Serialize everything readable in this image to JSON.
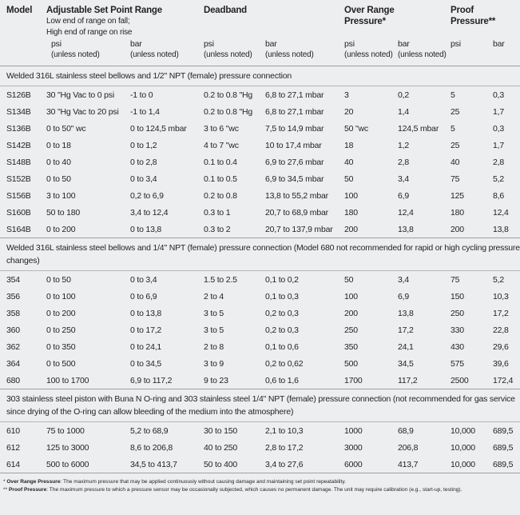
{
  "header": {
    "columns": [
      {
        "title": "Model"
      },
      {
        "title": "Adjustable Set Point Range",
        "notes": [
          "Low end of range on fall;",
          "High end of range on rise"
        ],
        "units": [
          {
            "unit": "psi",
            "note": "(unless noted)"
          },
          {
            "unit": "bar",
            "note": "(unless noted)"
          }
        ]
      },
      {
        "title": "Deadband",
        "units": [
          {
            "unit": "psi",
            "note": "(unless noted)"
          },
          {
            "unit": "bar",
            "note": "(unless noted)"
          }
        ]
      },
      {
        "title": "Over Range Pressure*",
        "units": [
          {
            "unit": "psi",
            "note": "(unless noted)"
          },
          {
            "unit": "bar",
            "note": "(unless noted)"
          }
        ]
      },
      {
        "title": "Proof Pressure**",
        "units": [
          {
            "unit": "psi"
          },
          {
            "unit": "bar"
          }
        ]
      }
    ]
  },
  "sections": [
    {
      "title": "Welded 316L stainless steel bellows and 1/2\" NPT (female) pressure connection",
      "rows": [
        [
          "S126B",
          "30 \"Hg Vac to 0 psi",
          "-1 to 0",
          "0.2 to 0.8 \"Hg",
          "6,8 to 27,1 mbar",
          "3",
          "0,2",
          "5",
          "0,3"
        ],
        [
          "S134B",
          "30 \"Hg Vac to 20 psi",
          "-1 to 1,4",
          "0.2 to 0.8 \"Hg",
          "6,8 to 27,1 mbar",
          "20",
          "1,4",
          "25",
          "1,7"
        ],
        [
          "S136B",
          "0 to 50\" wc",
          "0 to 124,5 mbar",
          "3 to 6 \"wc",
          "7,5 to 14,9 mbar",
          "50 \"wc",
          "124,5 mbar",
          "5",
          "0,3"
        ],
        [
          "S142B",
          "0 to 18",
          "0 to 1,2",
          "4 to 7 \"wc",
          "10 to 17,4 mbar",
          "18",
          "1,2",
          "25",
          "1,7"
        ],
        [
          "S148B",
          "0 to 40",
          "0 to 2,8",
          "0.1 to 0.4",
          "6,9 to 27,6 mbar",
          "40",
          "2,8",
          "40",
          "2,8"
        ],
        [
          "S152B",
          "0 to 50",
          "0 to 3,4",
          "0.1 to 0.5",
          "6,9 to 34,5 mbar",
          "50",
          "3,4",
          "75",
          "5,2"
        ],
        [
          "S156B",
          "3 to 100",
          "0,2 to 6,9",
          "0.2 to 0.8",
          "13,8 to 55,2 mbar",
          "100",
          "6,9",
          "125",
          "8,6"
        ],
        [
          "S160B",
          "50 to 180",
          "3,4 to 12,4",
          "0.3 to 1",
          "20,7 to 68,9 mbar",
          "180",
          "12,4",
          "180",
          "12,4"
        ],
        [
          "S164B",
          "0 to 200",
          "0 to 13,8",
          "0.3 to 2",
          "20,7 to 137,9 mbar",
          "200",
          "13,8",
          "200",
          "13,8"
        ]
      ]
    },
    {
      "title": "Welded 316L stainless steel bellows and 1/4\" NPT (female) pressure connection (Model 680 not recommended for rapid or high cycling pressure changes)",
      "rows": [
        [
          "354",
          "0 to 50",
          "0 to 3,4",
          "1.5 to 2.5",
          "0,1 to 0,2",
          "50",
          "3,4",
          "75",
          "5,2"
        ],
        [
          "356",
          "0 to 100",
          "0 to 6,9",
          "2 to 4",
          "0,1 to 0,3",
          "100",
          "6,9",
          "150",
          "10,3"
        ],
        [
          "358",
          "0 to 200",
          "0 to 13,8",
          "3 to 5",
          "0,2 to 0,3",
          "200",
          "13,8",
          "250",
          "17,2"
        ],
        [
          "360",
          "0 to 250",
          "0 to 17,2",
          "3 to 5",
          "0,2 to 0,3",
          "250",
          "17,2",
          "330",
          "22,8"
        ],
        [
          "362",
          "0 to 350",
          "0 to 24,1",
          "2 to 8",
          "0,1 to 0,6",
          "350",
          "24,1",
          "430",
          "29,6"
        ],
        [
          "364",
          "0 to 500",
          "0 to 34,5",
          "3 to 9",
          "0,2 to 0,62",
          "500",
          "34,5",
          "575",
          "39,6"
        ],
        [
          "680",
          "100 to 1700",
          "6,9 to 117,2",
          "9 to 23",
          "0,6 to 1,6",
          "1700",
          "117,2",
          "2500",
          "172,4"
        ]
      ]
    },
    {
      "title": "303 stainless steel piston with Buna N O-ring and 303 stainless steel 1/4\" NPT (female) pressure connection (not recommended for gas service since drying of the O-ring can allow bleeding of the medium into the atmosphere)",
      "rows": [
        [
          "610",
          "75 to 1000",
          "5,2 to 68,9",
          "30 to 150",
          "2,1 to 10,3",
          "1000",
          "68,9",
          "10,000",
          "689,5"
        ],
        [
          "612",
          "125 to 3000",
          "8,6 to 206,8",
          "40 to 250",
          "2,8 to 17,2",
          "3000",
          "206,8",
          "10,000",
          "689,5"
        ],
        [
          "614",
          "500 to 6000",
          "34,5 to 413,7",
          "50 to 400",
          "3,4 to 27,6",
          "6000",
          "413,7",
          "10,000",
          "689,5"
        ]
      ]
    }
  ],
  "footnotes": [
    {
      "marker": "*",
      "term": "Over Range Pressure",
      "text": ": The maximum pressure that may be applied continuously without causing damage and maintaining set point repeatability."
    },
    {
      "marker": "**",
      "term": "Proof Pressure",
      "text": ": The maximum pressure to which a pressure sensor may be occasionally subjected, which causes no permanent damage. The unit may require calibration (e.g., start-up, testing)."
    }
  ]
}
